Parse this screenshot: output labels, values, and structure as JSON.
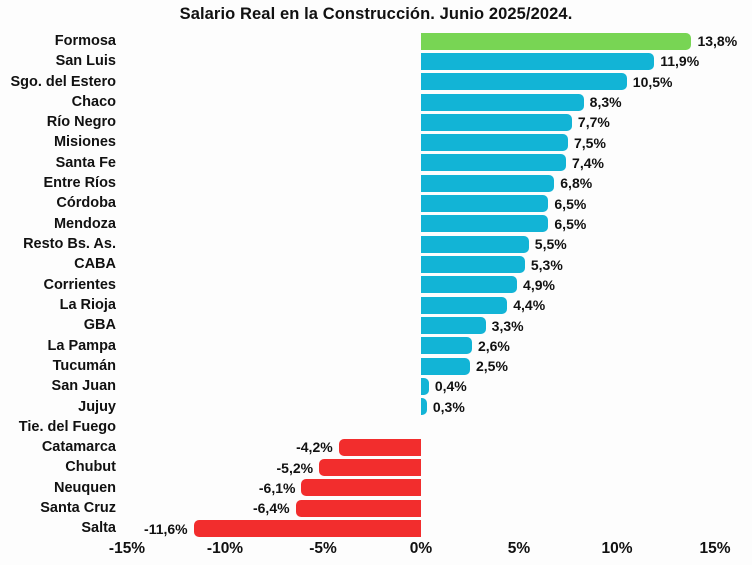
{
  "title": "Salario Real en la Construcción. Junio 2025/2024.",
  "colors": {
    "top_positive_bar": "#78d554",
    "positive_bar": "#12b4d6",
    "negative_bar": "#f22d2d",
    "text": "#111111",
    "background": "#fdfdfd"
  },
  "chart_data": {
    "type": "bar",
    "orientation": "horizontal",
    "title": "Salario Real en la Construcción. Junio 2025/2024.",
    "xlabel": "",
    "ylabel": "",
    "xlim": [
      -15,
      15
    ],
    "grid": false,
    "legend": null,
    "categories": [
      "Formosa",
      "San Luis",
      "Sgo. del Estero",
      "Chaco",
      "Río Negro",
      "Misiones",
      "Santa Fe",
      "Entre Ríos",
      "Córdoba",
      "Mendoza",
      "Resto Bs. As.",
      "CABA",
      "Corrientes",
      "La Rioja",
      "GBA",
      "La Pampa",
      "Tucumán",
      "San Juan",
      "Jujuy",
      "Tie. del Fuego",
      "Catamarca",
      "Chubut",
      "Neuquen",
      "Santa Cruz",
      "Salta"
    ],
    "values": [
      13.8,
      11.9,
      10.5,
      8.3,
      7.7,
      7.5,
      7.4,
      6.8,
      6.5,
      6.5,
      5.5,
      5.3,
      4.9,
      4.4,
      3.3,
      2.6,
      2.5,
      0.4,
      0.3,
      0.0,
      -4.2,
      -5.2,
      -6.1,
      -6.4,
      -11.6
    ],
    "value_labels": [
      "13,8%",
      "11,9%",
      "10,5%",
      "8,3%",
      "7,7%",
      "7,5%",
      "7,4%",
      "6,8%",
      "6,5%",
      "6,5%",
      "5,5%",
      "5,3%",
      "4,9%",
      "4,4%",
      "3,3%",
      "2,6%",
      "2,5%",
      "0,4%",
      "0,3%",
      "",
      "-4,2%",
      "-5,2%",
      "-6,1%",
      "-6,4%",
      "-11,6%"
    ],
    "bar_colors": [
      "#78d554",
      "#12b4d6",
      "#12b4d6",
      "#12b4d6",
      "#12b4d6",
      "#12b4d6",
      "#12b4d6",
      "#12b4d6",
      "#12b4d6",
      "#12b4d6",
      "#12b4d6",
      "#12b4d6",
      "#12b4d6",
      "#12b4d6",
      "#12b4d6",
      "#12b4d6",
      "#12b4d6",
      "#12b4d6",
      "#12b4d6",
      "none",
      "#f22d2d",
      "#f22d2d",
      "#f22d2d",
      "#f22d2d",
      "#f22d2d"
    ],
    "x_ticks": [
      {
        "value": -15,
        "label": "-15%"
      },
      {
        "value": -10,
        "label": "-10%"
      },
      {
        "value": -5,
        "label": "-5%"
      },
      {
        "value": 0,
        "label": "0%"
      },
      {
        "value": 5,
        "label": "5%"
      },
      {
        "value": 10,
        "label": "10%"
      },
      {
        "value": 15,
        "label": "15%"
      }
    ]
  }
}
